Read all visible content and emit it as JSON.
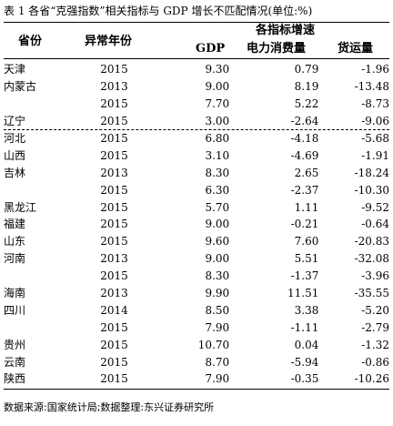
{
  "caption": "表 1 各省“克强指数”相关指标与 GDP 增长不匹配情况(单位:%)",
  "headers": {
    "province": "省份",
    "abnormal_year": "异常年份",
    "group": "各指标增速",
    "gdp": "GDP",
    "electricity": "电力消费量",
    "freight": "货运量"
  },
  "groups": [
    {
      "rows": [
        {
          "province": "天津",
          "year": "2015",
          "gdp": "9.30",
          "electricity": "0.79",
          "freight": "-1.96"
        },
        {
          "province": "内蒙古",
          "year": "2013",
          "gdp": "9.00",
          "electricity": "8.19",
          "freight": "-13.48"
        },
        {
          "province": "",
          "year": "2015",
          "gdp": "7.70",
          "electricity": "5.22",
          "freight": "-8.73"
        },
        {
          "province": "辽宁",
          "year": "2015",
          "gdp": "3.00",
          "electricity": "-2.64",
          "freight": "-9.06"
        }
      ]
    },
    {
      "rows": [
        {
          "province": "河北",
          "year": "2015",
          "gdp": "6.80",
          "electricity": "-4.18",
          "freight": "-5.68"
        },
        {
          "province": "山西",
          "year": "2015",
          "gdp": "3.10",
          "electricity": "-4.69",
          "freight": "-1.91"
        },
        {
          "province": "吉林",
          "year": "2013",
          "gdp": "8.30",
          "electricity": "2.65",
          "freight": "-18.24"
        },
        {
          "province": "",
          "year": "2015",
          "gdp": "6.30",
          "electricity": "-2.37",
          "freight": "-10.30"
        },
        {
          "province": "黑龙江",
          "year": "2015",
          "gdp": "5.70",
          "electricity": "1.11",
          "freight": "-9.52"
        },
        {
          "province": "福建",
          "year": "2015",
          "gdp": "9.00",
          "electricity": "-0.21",
          "freight": "-0.64"
        },
        {
          "province": "山东",
          "year": "2015",
          "gdp": "9.60",
          "electricity": "7.60",
          "freight": "-20.83"
        },
        {
          "province": "河南",
          "year": "2013",
          "gdp": "9.00",
          "electricity": "5.51",
          "freight": "-32.08"
        },
        {
          "province": "",
          "year": "2015",
          "gdp": "8.30",
          "electricity": "-1.37",
          "freight": "-3.96"
        },
        {
          "province": "海南",
          "year": "2013",
          "gdp": "9.90",
          "electricity": "11.51",
          "freight": "-35.55"
        },
        {
          "province": "四川",
          "year": "2014",
          "gdp": "8.50",
          "electricity": "3.38",
          "freight": "-5.20"
        },
        {
          "province": "",
          "year": "2015",
          "gdp": "7.90",
          "electricity": "-1.11",
          "freight": "-2.79"
        },
        {
          "province": "贵州",
          "year": "2015",
          "gdp": "10.70",
          "electricity": "0.04",
          "freight": "-1.32"
        },
        {
          "province": "云南",
          "year": "2015",
          "gdp": "8.70",
          "electricity": "-5.94",
          "freight": "-0.86"
        },
        {
          "province": "陕西",
          "year": "2015",
          "gdp": "7.90",
          "electricity": "-0.35",
          "freight": "-10.26"
        }
      ]
    }
  ],
  "source": "数据来源:国家统计局;数据整理:东兴证券研究所"
}
